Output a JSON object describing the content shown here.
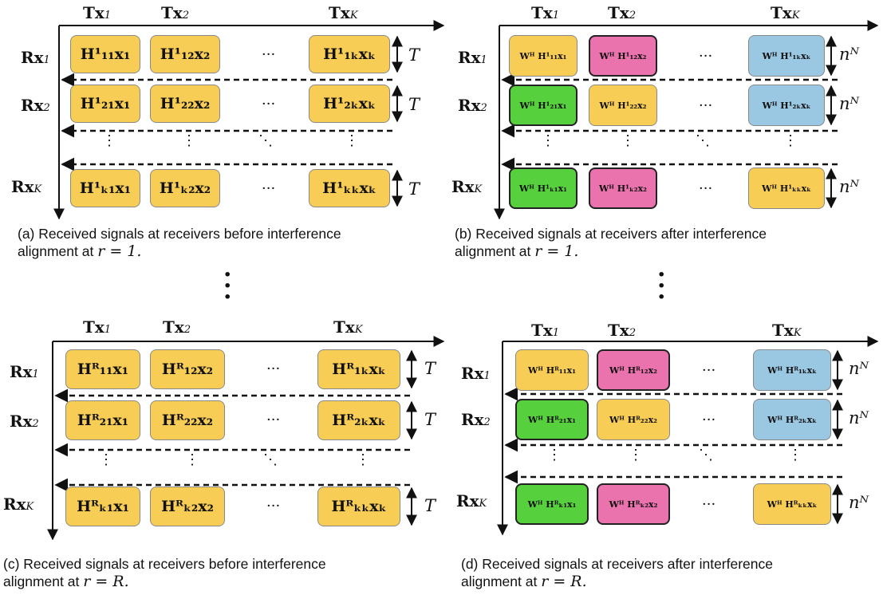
{
  "colors": {
    "yellow": "#f8cd55",
    "pink": "#ea72ad",
    "blue": "#9ac7e1",
    "green": "#56d03c"
  },
  "headers": {
    "tx1": "Tx",
    "tx1_sub": "1",
    "tx2": "Tx",
    "tx2_sub": "2",
    "txk": "Tx",
    "txk_sub": "K"
  },
  "rows": {
    "rx1": "Rx",
    "rx1_sub": "1",
    "rx2": "Rx",
    "rx2_sub": "2",
    "rxk": "Rx",
    "rxk_sub": "K"
  },
  "panel_a": {
    "cells": [
      "H¹₁₁x₁",
      "H¹₁₂x₂",
      "H¹₁ₖxₖ",
      "H¹₂₁x₁",
      "H¹₂₂x₂",
      "H¹₂ₖxₖ",
      "H¹ₖ₁x₁",
      "H¹ₖ₂x₂",
      "H¹ₖₖxₖ"
    ],
    "height_label": "T",
    "caption": "(a) Received signals at receivers before interference\nalignment at ",
    "caption_math": "r = 1."
  },
  "panel_b": {
    "cells": [
      "Wᴴ H¹₁₁x₁",
      "Wᴴ H¹₁₂x₂",
      "Wᴴ H¹₁ₖxₖ",
      "Wᴴ H¹₂₁x₁",
      "Wᴴ H¹₂₂x₂",
      "Wᴴ H¹₂ₖxₖ",
      "Wᴴ H¹ₖ₁x₁",
      "Wᴴ H¹ₖ₂x₂",
      "Wᴴ H¹ₖₖxₖ"
    ],
    "height_label": "nᴺ",
    "caption": "(b) Received signals at receivers after interference\nalignment at ",
    "caption_math": "r = 1."
  },
  "panel_c": {
    "cells": [
      "Hᴿ₁₁x₁",
      "Hᴿ₁₂x₂",
      "Hᴿ₁ₖxₖ",
      "Hᴿ₂₁x₁",
      "Hᴿ₂₂x₂",
      "Hᴿ₂ₖxₖ",
      "Hᴿₖ₁x₁",
      "Hᴿₖ₂x₂",
      "Hᴿₖₖxₖ"
    ],
    "height_label": "T",
    "caption": "(c) Received signals at receivers before interference\nalignment at ",
    "caption_math": "r = R."
  },
  "panel_d": {
    "cells": [
      "Wᴴ Hᴿ₁₁x₁",
      "Wᴴ Hᴿ₁₂x₂",
      "Wᴴ Hᴿ₁ₖxₖ",
      "Wᴴ Hᴿ₂₁x₁",
      "Wᴴ Hᴿ₂₂x₂",
      "Wᴴ Hᴿ₂ₖxₖ",
      "Wᴴ Hᴿₖ₁x₁",
      "Wᴴ Hᴿₖ₂x₂",
      "Wᴴ Hᴿₖₖxₖ"
    ],
    "height_label": "nᴺ",
    "caption": "(d) Received signals at receivers after interference\nalignment at ",
    "caption_math": "r = R."
  },
  "ellipsis_h": "···",
  "ellipsis_v": "⋮",
  "ellipsis_d": "⋱"
}
